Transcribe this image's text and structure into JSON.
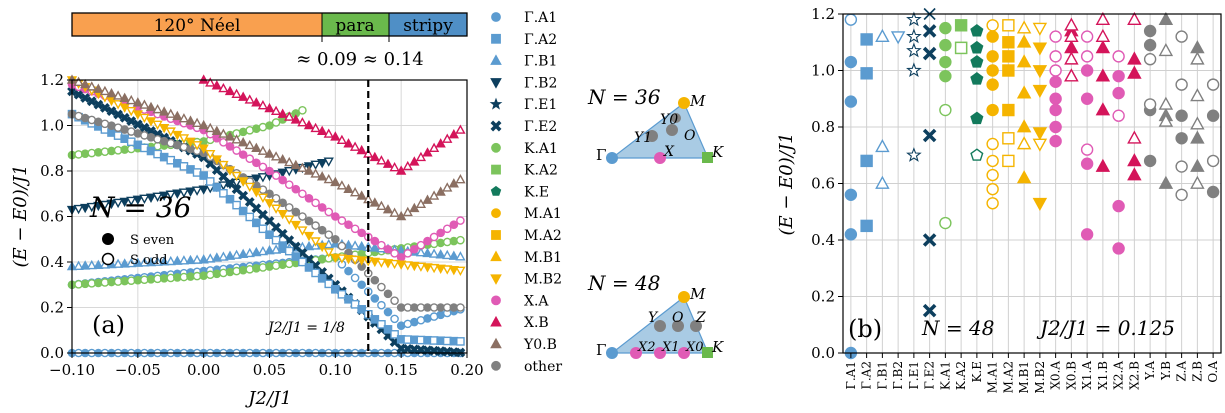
{
  "colors": {
    "blue": "#5b9bd0",
    "navy": "#0d3f5e",
    "green": "#7cc45c",
    "teal": "#137a5c",
    "orange": "#f5b400",
    "pink": "#e05bb5",
    "crimson": "#d4145a",
    "brown": "#8b6f62",
    "gray": "#808080",
    "neel": "#f9a04f",
    "para": "#6ab94c",
    "stripy": "#4f8fc6",
    "sector": "#a9cbe4"
  },
  "phase_bar": {
    "labels": [
      "120° Néel",
      "para",
      "stripy"
    ],
    "boundaries_label": "≈ 0.09 ≈ 0.14",
    "boundaries": [
      0.09,
      0.14
    ]
  },
  "legend": {
    "entries": [
      {
        "label": "Γ.A1",
        "color": "blue",
        "marker": "circle"
      },
      {
        "label": "Γ.A2",
        "color": "blue",
        "marker": "square"
      },
      {
        "label": "Γ.B1",
        "color": "blue",
        "marker": "triangle-up"
      },
      {
        "label": "Γ.B2",
        "color": "navy",
        "marker": "triangle-down"
      },
      {
        "label": "Γ.E1",
        "color": "navy",
        "marker": "star"
      },
      {
        "label": "Γ.E2",
        "color": "navy",
        "marker": "x"
      },
      {
        "label": "K.A1",
        "color": "green",
        "marker": "circle"
      },
      {
        "label": "K.A2",
        "color": "green",
        "marker": "square"
      },
      {
        "label": "K.E",
        "color": "teal",
        "marker": "pentagon"
      },
      {
        "label": "M.A1",
        "color": "orange",
        "marker": "circle"
      },
      {
        "label": "M.A2",
        "color": "orange",
        "marker": "square"
      },
      {
        "label": "M.B1",
        "color": "orange",
        "marker": "triangle-up"
      },
      {
        "label": "M.B2",
        "color": "orange",
        "marker": "triangle-down"
      },
      {
        "label": "X.A",
        "color": "pink",
        "marker": "circle"
      },
      {
        "label": "X.B",
        "color": "crimson",
        "marker": "triangle-up"
      },
      {
        "label": "Y0.B",
        "color": "brown",
        "marker": "triangle-up"
      },
      {
        "label": "other",
        "color": "gray",
        "marker": "circle"
      }
    ]
  },
  "insets": {
    "n36": {
      "title": "N = 36",
      "labels": [
        "M",
        "Y0",
        "Y1",
        "O",
        "Γ",
        "X",
        "K"
      ]
    },
    "n48": {
      "title": "N = 48",
      "labels": [
        "M",
        "Y",
        "O",
        "Z",
        "Γ",
        "X2",
        "X1",
        "X0",
        "K"
      ]
    }
  },
  "chart_data": [
    {
      "type": "scatter",
      "panel": "(a)",
      "xlabel": "J2/J1",
      "ylabel": "(E − E0)/J1",
      "xlim": [
        -0.1,
        0.2
      ],
      "ylim": [
        0,
        1.2
      ],
      "xticks": [
        "−0.10",
        "−0.05",
        "0.00",
        "0.05",
        "0.10",
        "0.15",
        "0.20"
      ],
      "yticks": [
        "0.0",
        "0.2",
        "0.4",
        "0.6",
        "0.8",
        "1.0",
        "1.2"
      ],
      "annotations": [
        "N = 36",
        "S even",
        "S odd",
        "J2/J1 = 1/8"
      ],
      "vline": 0.125,
      "series": [
        {
          "name": "Γ.A1",
          "x": [
            -0.1,
            0.2
          ],
          "y": [
            0.0,
            0.0
          ]
        },
        {
          "name": "Γ.A1",
          "x": [
            -0.1,
            0.0,
            0.1,
            0.15,
            0.2
          ],
          "y": [
            0.3,
            0.36,
            0.42,
            0.12,
            0.2
          ]
        },
        {
          "name": "K.A1",
          "x": [
            -0.1,
            0.0,
            0.1,
            0.2
          ],
          "y": [
            0.3,
            0.34,
            0.42,
            0.5
          ]
        },
        {
          "name": "K.A1",
          "x": [
            -0.1,
            0.0,
            0.05,
            0.08
          ],
          "y": [
            0.87,
            0.93,
            1.0,
            1.08
          ]
        },
        {
          "name": "Γ.B1",
          "x": [
            -0.1,
            0.0,
            0.05,
            0.1,
            0.2
          ],
          "y": [
            0.38,
            0.41,
            0.45,
            0.48,
            0.42
          ]
        },
        {
          "name": "Γ.B2",
          "x": [
            -0.1,
            0.0,
            0.05,
            0.1
          ],
          "y": [
            0.63,
            0.72,
            0.78,
            0.85
          ]
        },
        {
          "name": "Γ.E2",
          "x": [
            -0.1,
            0.0,
            0.05,
            0.1,
            0.15,
            0.2
          ],
          "y": [
            1.15,
            0.86,
            0.58,
            0.3,
            0.02,
            0.0
          ]
        },
        {
          "name": "Γ.A2",
          "x": [
            -0.1,
            0.0,
            0.05,
            0.1,
            0.15,
            0.2
          ],
          "y": [
            1.05,
            0.78,
            0.52,
            0.28,
            0.06,
            0.05
          ]
        },
        {
          "name": "other",
          "x": [
            -0.1,
            0.0,
            0.05,
            0.1,
            0.15,
            0.2
          ],
          "y": [
            1.05,
            0.88,
            0.7,
            0.5,
            0.2,
            0.2
          ]
        },
        {
          "name": "X.A",
          "x": [
            -0.1,
            0.0,
            0.05,
            0.1,
            0.15,
            0.2
          ],
          "y": [
            1.18,
            0.98,
            0.8,
            0.6,
            0.42,
            0.6
          ]
        },
        {
          "name": "M.B2",
          "x": [
            -0.1,
            0.0,
            0.1,
            0.2
          ],
          "y": [
            1.2,
            0.9,
            0.42,
            0.36
          ]
        },
        {
          "name": "Y0.B",
          "x": [
            -0.1,
            0.0,
            0.1,
            0.15,
            0.2
          ],
          "y": [
            1.2,
            1.0,
            0.75,
            0.6,
            0.78
          ]
        },
        {
          "name": "X.B",
          "x": [
            0.0,
            0.1,
            0.15,
            0.2
          ],
          "y": [
            1.2,
            0.95,
            0.8,
            1.0
          ]
        }
      ]
    },
    {
      "type": "scatter",
      "panel": "(b)",
      "ylabel": "(E − E0)/J1",
      "ylim": [
        0,
        1.2
      ],
      "yticks": [
        "0.0",
        "0.2",
        "0.4",
        "0.6",
        "0.8",
        "1.0",
        "1.2"
      ],
      "annotations": [
        "N = 48",
        "J2/J1 = 0.125"
      ],
      "categories": [
        "Γ.A1",
        "Γ.A2",
        "Γ.B1",
        "Γ.B2",
        "Γ.E1",
        "Γ.E2",
        "K.A1",
        "K.A2",
        "K.E",
        "M.A1",
        "M.A2",
        "M.B1",
        "M.B2",
        "X0.A",
        "X0.B",
        "X1.A",
        "X1.B",
        "X2.A",
        "X2.B",
        "Y.A",
        "Y.B",
        "Z.A",
        "Z.B",
        "O.A"
      ],
      "points": [
        {
          "cat": 0,
          "marker": "circle",
          "color": "blue",
          "filled": [
            0.0,
            0.42,
            0.56,
            0.89,
            1.03
          ],
          "open": [
            1.18
          ]
        },
        {
          "cat": 1,
          "marker": "square",
          "color": "blue",
          "filled": [
            0.45,
            0.68,
            0.99,
            1.11
          ],
          "open": []
        },
        {
          "cat": 2,
          "marker": "triangle-up",
          "color": "blue",
          "filled": [],
          "open": [
            0.6,
            0.73,
            1.12
          ]
        },
        {
          "cat": 3,
          "marker": "triangle-down",
          "color": "blue",
          "filled": [],
          "open": [
            1.12
          ]
        },
        {
          "cat": 4,
          "marker": "star",
          "color": "navy",
          "filled": [],
          "open": [
            0.7,
            1.0,
            1.07,
            1.12,
            1.18
          ]
        },
        {
          "cat": 5,
          "marker": "x",
          "color": "navy",
          "filled": [
            0.15,
            0.4,
            0.77,
            1.06,
            1.14
          ],
          "open": [
            1.2
          ]
        },
        {
          "cat": 6,
          "marker": "circle",
          "color": "green",
          "filled": [
            0.98,
            1.03,
            1.09,
            1.15
          ],
          "open": [
            0.46,
            0.86
          ]
        },
        {
          "cat": 7,
          "marker": "square",
          "color": "green",
          "filled": [
            1.08,
            1.16
          ],
          "open": [
            1.08
          ]
        },
        {
          "cat": 8,
          "marker": "pentagon",
          "color": "teal",
          "filled": [
            0.83,
            0.97,
            1.03,
            1.08,
            1.14
          ],
          "open": [
            0.7
          ]
        },
        {
          "cat": 9,
          "marker": "circle",
          "color": "orange",
          "filled": [
            0.86,
            0.95,
            1.0,
            1.05,
            1.12
          ],
          "open": [
            0.53,
            0.58,
            0.63,
            0.68,
            0.74,
            1.16
          ]
        },
        {
          "cat": 10,
          "marker": "square",
          "color": "orange",
          "filled": [
            0.86,
            1.0,
            1.05,
            1.1
          ],
          "open": [
            0.68,
            0.76,
            1.16
          ]
        },
        {
          "cat": 11,
          "marker": "triangle-up",
          "color": "orange",
          "filled": [
            0.62,
            0.8,
            0.92,
            1.03,
            1.1
          ],
          "open": [
            0.74,
            1.15
          ]
        },
        {
          "cat": 12,
          "marker": "triangle-down",
          "color": "orange",
          "filled": [
            0.53,
            0.78,
            0.93,
            1.0,
            1.08
          ],
          "open": [
            0.74,
            1.15
          ]
        },
        {
          "cat": 13,
          "marker": "circle",
          "color": "pink",
          "filled": [
            0.75,
            0.8,
            0.86,
            0.9,
            0.96
          ],
          "open": [
            1.0,
            1.05,
            1.12
          ]
        },
        {
          "cat": 14,
          "marker": "triangle-up",
          "color": "crimson",
          "filled": [
            0.98,
            1.08,
            1.14
          ],
          "open": [
            0.98,
            1.04,
            1.12,
            1.16
          ]
        },
        {
          "cat": 15,
          "marker": "circle",
          "color": "pink",
          "filled": [
            0.42,
            0.67,
            0.9,
            1.0
          ],
          "open": [
            0.72,
            1.05,
            1.12
          ]
        },
        {
          "cat": 16,
          "marker": "triangle-up",
          "color": "crimson",
          "filled": [
            0.66,
            0.86,
            0.98,
            1.08
          ],
          "open": [
            1.12,
            1.18
          ]
        },
        {
          "cat": 17,
          "marker": "circle",
          "color": "pink",
          "filled": [
            0.37,
            0.52,
            0.92,
            0.98
          ],
          "open": [
            0.84,
            1.05
          ]
        },
        {
          "cat": 18,
          "marker": "triangle-up",
          "color": "crimson",
          "filled": [
            0.63,
            0.68,
            0.99,
            1.04
          ],
          "open": [
            0.76,
            1.18
          ]
        },
        {
          "cat": 19,
          "marker": "circle",
          "color": "gray",
          "filled": [
            0.68,
            0.86,
            1.09,
            1.14
          ],
          "open": [
            0.88,
            1.04
          ]
        },
        {
          "cat": 20,
          "marker": "triangle-up",
          "color": "gray",
          "filled": [
            0.6,
            0.84,
            1.18
          ],
          "open": [
            0.82,
            0.88,
            1.07
          ]
        },
        {
          "cat": 21,
          "marker": "circle",
          "color": "gray",
          "filled": [
            0.76,
            0.84
          ],
          "open": [
            0.56,
            0.66,
            0.95,
            1.12
          ]
        },
        {
          "cat": 22,
          "marker": "triangle-up",
          "color": "gray",
          "filled": [
            0.66,
            0.76,
            1.08
          ],
          "open": [
            0.6,
            0.81,
            0.91,
            1.04
          ]
        },
        {
          "cat": 23,
          "marker": "circle",
          "color": "gray",
          "filled": [
            0.57,
            0.84
          ],
          "open": [
            0.68,
            0.95
          ]
        }
      ]
    }
  ]
}
